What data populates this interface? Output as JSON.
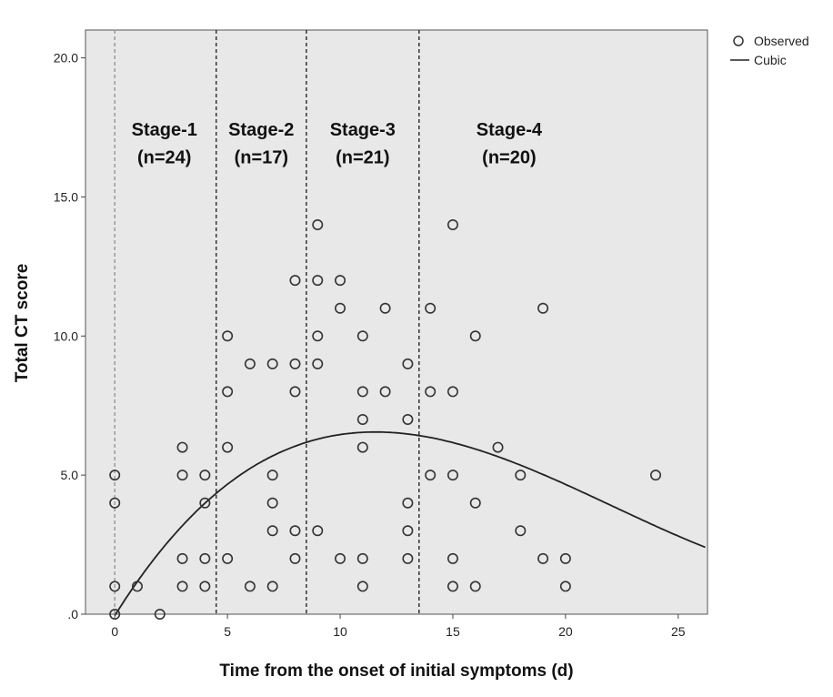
{
  "chart_data": {
    "type": "scatter",
    "xlabel": "Time from the onset of initial symptoms (d)",
    "ylabel": "Total CT score",
    "xlim": [
      -1.3,
      26.3
    ],
    "ylim": [
      0,
      21
    ],
    "x_ticks": [
      {
        "value": 0,
        "label": "0"
      },
      {
        "value": 5,
        "label": "5"
      },
      {
        "value": 10,
        "label": "10"
      },
      {
        "value": 15,
        "label": "15"
      },
      {
        "value": 20,
        "label": "20"
      },
      {
        "value": 25,
        "label": "25"
      }
    ],
    "y_ticks": [
      {
        "value": 0,
        "label": ".0"
      },
      {
        "value": 5,
        "label": "5.0"
      },
      {
        "value": 10,
        "label": "10.0"
      },
      {
        "value": 15,
        "label": "15.0"
      },
      {
        "value": 20,
        "label": "20.0"
      }
    ],
    "grid": false,
    "background": "#e8e8e8",
    "legend_position": "top-right",
    "legend": [
      {
        "label": "Observed",
        "marker": "open-circle"
      },
      {
        "label": "Cubic",
        "marker": "line"
      }
    ],
    "stage_boundaries": [
      {
        "x": 0,
        "color": "#999999"
      },
      {
        "x": 4.5,
        "color": "#333333"
      },
      {
        "x": 8.5,
        "color": "#333333"
      },
      {
        "x": 13.5,
        "color": "#333333"
      }
    ],
    "stages": [
      {
        "name": "Stage-1",
        "count": "(n=24)",
        "x_center": 2.2
      },
      {
        "name": "Stage-2",
        "count": "(n=17)",
        "x_center": 6.5
      },
      {
        "name": "Stage-3",
        "count": "(n=21)",
        "x_center": 11.0
      },
      {
        "name": "Stage-4",
        "count": "(n=20)",
        "x_center": 17.5
      }
    ],
    "stage_label_y": 17.2,
    "stage_count_y": 16.2,
    "series": [
      {
        "name": "Observed",
        "points": [
          [
            0,
            0
          ],
          [
            0,
            1
          ],
          [
            0,
            4
          ],
          [
            0,
            5
          ],
          [
            1,
            1
          ],
          [
            2,
            0
          ],
          [
            3,
            1
          ],
          [
            3,
            2
          ],
          [
            3,
            5
          ],
          [
            3,
            6
          ],
          [
            4,
            1
          ],
          [
            4,
            2
          ],
          [
            4,
            4
          ],
          [
            4,
            5
          ],
          [
            5,
            2
          ],
          [
            5,
            6
          ],
          [
            5,
            8
          ],
          [
            5,
            10
          ],
          [
            6,
            1
          ],
          [
            6,
            9
          ],
          [
            7,
            1
          ],
          [
            7,
            3
          ],
          [
            7,
            4
          ],
          [
            7,
            5
          ],
          [
            7,
            9
          ],
          [
            8,
            2
          ],
          [
            8,
            3
          ],
          [
            8,
            8
          ],
          [
            8,
            9
          ],
          [
            8,
            12
          ],
          [
            9,
            3
          ],
          [
            9,
            9
          ],
          [
            9,
            10
          ],
          [
            9,
            12
          ],
          [
            9,
            14
          ],
          [
            10,
            2
          ],
          [
            10,
            11
          ],
          [
            10,
            12
          ],
          [
            11,
            1
          ],
          [
            11,
            2
          ],
          [
            11,
            6
          ],
          [
            11,
            7
          ],
          [
            11,
            8
          ],
          [
            11,
            10
          ],
          [
            12,
            8
          ],
          [
            12,
            11
          ],
          [
            13,
            2
          ],
          [
            13,
            3
          ],
          [
            13,
            4
          ],
          [
            13,
            7
          ],
          [
            13,
            9
          ],
          [
            14,
            5
          ],
          [
            14,
            8
          ],
          [
            14,
            11
          ],
          [
            15,
            1
          ],
          [
            15,
            2
          ],
          [
            15,
            5
          ],
          [
            15,
            8
          ],
          [
            15,
            14
          ],
          [
            16,
            1
          ],
          [
            16,
            4
          ],
          [
            16,
            10
          ],
          [
            17,
            6
          ],
          [
            18,
            3
          ],
          [
            18,
            5
          ],
          [
            19,
            2
          ],
          [
            19,
            11
          ],
          [
            20,
            1
          ],
          [
            20,
            2
          ],
          [
            24,
            5
          ]
        ]
      },
      {
        "name": "Cubic",
        "coefficients": [
          -0.05,
          1.295,
          -0.0759,
          0.001147
        ]
      }
    ]
  }
}
